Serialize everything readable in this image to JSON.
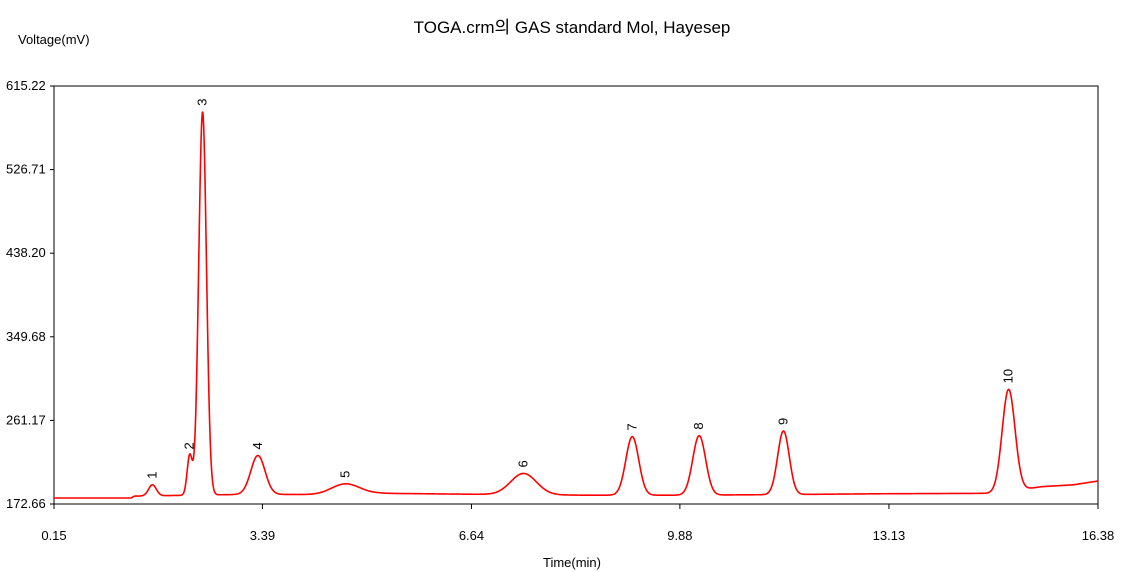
{
  "chart_data": {
    "type": "line",
    "title": "TOGA.crm의 GAS standard Mol, Hayesep",
    "xlabel": "Time(min)",
    "ylabel": "Voltage(mV)",
    "xlim": [
      0.15,
      16.38
    ],
    "ylim": [
      172.66,
      615.22
    ],
    "x_ticks": [
      "0.15",
      "3.39",
      "6.64",
      "9.88",
      "13.13",
      "16.38"
    ],
    "y_ticks": [
      "615.22",
      "526.71",
      "438.20",
      "349.68",
      "261.17",
      "172.66"
    ],
    "grid": false,
    "colors": {
      "trace": "#ff0000",
      "axes": "#000000"
    },
    "series": [
      {
        "name": "",
        "baseline": [
          [
            0.15,
            179.0
          ],
          [
            1.35,
            179.0
          ],
          [
            1.4,
            181.0
          ],
          [
            2.3,
            182.0
          ],
          [
            3.3,
            183.0
          ],
          [
            4.35,
            182.5
          ],
          [
            5.2,
            184.0
          ],
          [
            6.64,
            183.0
          ],
          [
            8.4,
            182.0
          ],
          [
            9.88,
            182.0
          ],
          [
            11.2,
            182.5
          ],
          [
            13.0,
            183.5
          ],
          [
            14.8,
            184.0
          ],
          [
            15.5,
            191.0
          ],
          [
            16.0,
            193.0
          ],
          [
            16.38,
            197.0
          ]
        ],
        "peaks": [
          {
            "label": "1",
            "x": 1.68,
            "y": 193.0,
            "width": 0.06
          },
          {
            "label": "2",
            "x": 2.26,
            "y": 224.0,
            "width": 0.04
          },
          {
            "label": "3",
            "x": 2.46,
            "y": 588.0,
            "width": 0.06
          },
          {
            "label": "4",
            "x": 3.32,
            "y": 224.0,
            "width": 0.11
          },
          {
            "label": "5",
            "x": 4.68,
            "y": 194.0,
            "width": 0.22
          },
          {
            "label": "6",
            "x": 7.45,
            "y": 205.0,
            "width": 0.2
          },
          {
            "label": "7",
            "x": 9.14,
            "y": 244.0,
            "width": 0.1
          },
          {
            "label": "8",
            "x": 10.18,
            "y": 245.0,
            "width": 0.1
          },
          {
            "label": "9",
            "x": 11.49,
            "y": 250.0,
            "width": 0.09
          },
          {
            "label": "10",
            "x": 14.99,
            "y": 294.0,
            "width": 0.1
          }
        ]
      }
    ]
  }
}
